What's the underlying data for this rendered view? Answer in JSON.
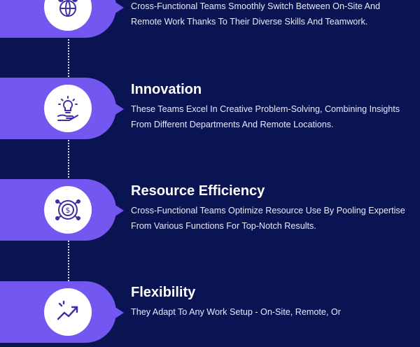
{
  "items": [
    {
      "icon": "teamwork-globe-icon",
      "title": "",
      "description": "Cross-Functional Teams Smoothly Switch Between On-Site And Remote Work Thanks To Their Diverse Skills And Teamwork."
    },
    {
      "icon": "lightbulb-hand-icon",
      "title": "Innovation",
      "description": "These Teams Excel In Creative Problem-Solving, Combining Insights From Different Departments And Remote Locations."
    },
    {
      "icon": "dollar-coin-icon",
      "title": "Resource Efficiency",
      "description": "Cross-Functional Teams Optimize Resource Use By Pooling Expertise From Various Functions For Top-Notch Results."
    },
    {
      "icon": "growth-arrow-icon",
      "title": "Flexibility",
      "description": "They Adapt To Any Work Setup - On-Site, Remote, Or"
    }
  ],
  "colors": {
    "background": "#0b1452",
    "accent": "#7357f0",
    "icon_stroke": "#3d2fa6",
    "text": "#ffffff"
  }
}
